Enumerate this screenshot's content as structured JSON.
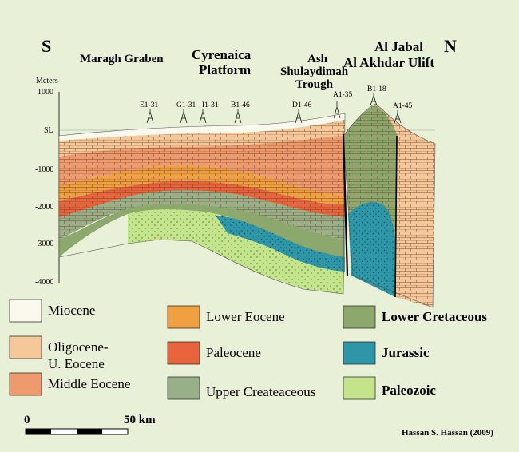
{
  "directions": {
    "south": "S",
    "north": "N"
  },
  "regions": {
    "maragh": "Maragh Graben",
    "cyrenaica": [
      "Cyrenaica",
      "Platform"
    ],
    "ash": [
      "Ash",
      "Shulaydimah",
      "Trough"
    ],
    "jabal": [
      "Al Jabal",
      "Al Akhdar Ulift"
    ]
  },
  "depth_axis": {
    "unit": "Meters",
    "ticks": [
      "1000",
      "SL",
      "-1000",
      "-2000",
      "-3000",
      "-4000"
    ]
  },
  "wells": [
    "E1-31",
    "G1-31",
    "I1-31",
    "B1-46",
    "D1-46",
    "A1-35",
    "B1-18",
    "A1-45"
  ],
  "legend": [
    {
      "id": "miocene",
      "lines": [
        "Miocene"
      ],
      "color": "#fbf8ee",
      "bold": false
    },
    {
      "id": "oligocene",
      "lines": [
        "Oligocene-",
        "U. Eocene"
      ],
      "color": "#f5c89a",
      "bold": false
    },
    {
      "id": "middle-eocene",
      "lines": [
        "Middle Eocene"
      ],
      "color": "#ee9a6c",
      "bold": false
    },
    {
      "id": "lower-eocene",
      "lines": [
        "Lower Eocene"
      ],
      "color": "#f0a040",
      "bold": false
    },
    {
      "id": "paleocene",
      "lines": [
        "Paleocene"
      ],
      "color": "#e8643c",
      "bold": false
    },
    {
      "id": "upper-cretaceous",
      "lines": [
        "Upper Createaceous"
      ],
      "color": "#98b088",
      "bold": false
    },
    {
      "id": "lower-cretaceous",
      "lines": [
        "Lower Cretaceous"
      ],
      "color": "#8ca86c",
      "bold": true
    },
    {
      "id": "jurassic",
      "lines": [
        "Jurassic"
      ],
      "color": "#2e96a6",
      "bold": true
    },
    {
      "id": "paleozoic",
      "lines": [
        "Paleozoic"
      ],
      "color": "#c4e48c",
      "bold": true
    }
  ],
  "scale_bar": {
    "start": "0",
    "end": "50 km"
  },
  "credit": "Hassan S. Hassan (2009)"
}
